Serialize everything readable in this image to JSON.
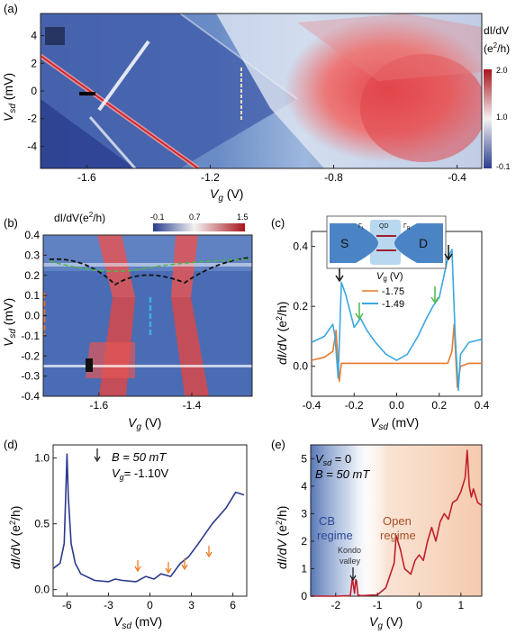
{
  "panels": {
    "a": {
      "label": "(a)",
      "ylabel": "V",
      "ylabel_sub": "sd",
      "ylabel_unit": " (mV)",
      "xlabel": "V",
      "xlabel_sub": "g",
      "xlabel_unit": " (V)",
      "xticks": [
        "-1.6",
        "-1.2",
        "-0.8",
        "-0.4"
      ],
      "yticks": [
        "4",
        "2",
        "0",
        "-2",
        "-4"
      ],
      "cbar_title": "dI/dV",
      "cbar_unit": "(e",
      "cbar_unit_sup": "2",
      "cbar_unit_end": "/h)",
      "cbar_ticks": [
        "2.0",
        "1.0",
        "-0.1"
      ]
    },
    "b": {
      "label": "(b)",
      "cbar_title": "dI/dV(e",
      "cbar_title_sup": "2",
      "cbar_title_end": "/h)",
      "cbar_ticks": [
        "-0.1",
        "0.7",
        "1.5"
      ],
      "ylabel": "V",
      "ylabel_sub": "sd",
      "ylabel_unit": " (mV)",
      "xlabel": "V",
      "xlabel_sub": "g",
      "xlabel_unit": " (V)",
      "xticks": [
        "-1.6",
        "-1.4"
      ],
      "yticks": [
        "0.4",
        "0.3",
        "0.2",
        "0.1",
        "0.0",
        "-0.1",
        "-0.2",
        "-0.3",
        "-0.4"
      ]
    },
    "c": {
      "label": "(c)",
      "ylabel": "dI/dV",
      "ylabel_unit": " (e",
      "ylabel_sup": "2",
      "ylabel_end": "/h)",
      "xlabel": "V",
      "xlabel_sub": "sd",
      "xlabel_unit": " (mV)",
      "xticks": [
        "-0.4",
        "-0.2",
        "0.0",
        "0.2",
        "0.4"
      ],
      "yticks": [
        "0.4",
        "0.2",
        "0.0"
      ],
      "legend_title": "V",
      "legend_title_sub": "g",
      "legend_title_unit": " (V)",
      "inset": {
        "S": "S",
        "D": "D",
        "QD": "QD",
        "gl": "Γ",
        "gl_sub": "l",
        "gr": "Γ",
        "gr_sub": "R"
      }
    },
    "d": {
      "label": "(d)",
      "ylabel": "dI/dV",
      "ylabel_unit": " (e",
      "ylabel_sup": "2",
      "ylabel_end": "/h)",
      "xlabel": "V",
      "xlabel_sub": "sd",
      "xlabel_unit": " (mV)",
      "xticks": [
        "-6",
        "-3",
        "0",
        "3",
        "6"
      ],
      "yticks": [
        "1.0",
        "0.5",
        "0.0"
      ],
      "anno_b": "B = 50 mT",
      "anno_vg_sym": "V",
      "anno_vg_sub": "g",
      "anno_vg_val": "= -1.10V"
    },
    "e": {
      "label": "(e)",
      "ylabel": "dI/dV",
      "ylabel_unit": " (e",
      "ylabel_sup": "2",
      "ylabel_end": "/h)",
      "xlabel": "V",
      "xlabel_sub": "g",
      "xlabel_unit": " (V)",
      "xticks": [
        "-2",
        "-1",
        "0",
        "1"
      ],
      "yticks": [
        "5",
        "4",
        "3",
        "2",
        "1",
        "0"
      ],
      "anno_vsd_sym": "V",
      "anno_vsd_sub": "sd",
      "anno_vsd_val": " = 0",
      "anno_b": "B = 50 mT",
      "cb_line1": "CB",
      "cb_line2": "regime",
      "open_line1": "Open",
      "open_line2": "regime",
      "kondo_line1": "Kondo",
      "kondo_line2": "valley"
    }
  },
  "colors": {
    "map_low": "#2a3d8f",
    "map_mid": "#f2f2f4",
    "map_high": "#c8202a",
    "trace_orange": "#e87a2c",
    "trace_blue": "#3aa8e0",
    "trace_navy": "#2a3a8c",
    "trace_red": "#c0202a",
    "arrow_orange": "#f07a20",
    "arrow_green": "#4cb848",
    "region_blue": "#3a5fa8",
    "region_orange": "#f4c4a4"
  },
  "chart_data": [
    {
      "panel": "c",
      "type": "line",
      "xlabel": "Vsd (mV)",
      "ylabel": "dI/dV (e2/h)",
      "xlim": [
        -0.4,
        0.4
      ],
      "ylim": [
        -0.1,
        0.45
      ],
      "series": [
        {
          "name": "-1.75",
          "color": "#e87a2c",
          "x": [
            -0.4,
            -0.34,
            -0.3,
            -0.285,
            -0.27,
            -0.26,
            -0.24,
            -0.2,
            -0.1,
            0.0,
            0.1,
            0.2,
            0.24,
            0.26,
            0.27,
            0.285,
            0.3,
            0.34,
            0.4
          ],
          "y": [
            0.02,
            0.03,
            0.05,
            0.12,
            -0.05,
            0.01,
            0.01,
            0.01,
            0.01,
            0.01,
            0.01,
            0.01,
            0.01,
            0.05,
            0.14,
            -0.07,
            0.0,
            0.01,
            0.01
          ]
        },
        {
          "name": "-1.49",
          "color": "#3aa8e0",
          "x": [
            -0.4,
            -0.34,
            -0.3,
            -0.29,
            -0.275,
            -0.26,
            -0.24,
            -0.2,
            -0.17,
            -0.14,
            -0.1,
            -0.05,
            0.0,
            0.05,
            0.1,
            0.14,
            0.17,
            0.2,
            0.24,
            0.26,
            0.275,
            0.29,
            0.3,
            0.34,
            0.4
          ],
          "y": [
            0.08,
            0.1,
            0.14,
            0.1,
            -0.04,
            0.28,
            0.24,
            0.13,
            0.16,
            0.12,
            0.08,
            0.04,
            0.02,
            0.04,
            0.1,
            0.16,
            0.2,
            0.23,
            0.36,
            0.39,
            0.1,
            -0.08,
            0.04,
            0.08,
            0.09
          ]
        }
      ]
    },
    {
      "panel": "d",
      "type": "line",
      "xlabel": "Vsd (mV)",
      "ylabel": "dI/dV (e2/h)",
      "xlim": [
        -7,
        7
      ],
      "ylim": [
        -0.05,
        1.1
      ],
      "series": [
        {
          "color": "#2a3a8c",
          "x": [
            -7,
            -6.5,
            -6.2,
            -6.0,
            -5.9,
            -5.7,
            -5.4,
            -5.0,
            -4.0,
            -3.0,
            -2.5,
            -2.0,
            -1.0,
            -0.3,
            0.3,
            0.8,
            1.5,
            2.2,
            2.8,
            3.5,
            4.5,
            5.5,
            6.2,
            6.8
          ],
          "y": [
            0.16,
            0.2,
            0.35,
            1.03,
            0.7,
            0.35,
            0.2,
            0.12,
            0.07,
            0.06,
            0.08,
            0.07,
            0.06,
            0.1,
            0.08,
            0.12,
            0.1,
            0.2,
            0.25,
            0.35,
            0.5,
            0.62,
            0.74,
            0.72
          ]
        }
      ]
    },
    {
      "panel": "e",
      "type": "line",
      "xlabel": "Vg (V)",
      "ylabel": "dI/dV (e2/h)",
      "xlim": [
        -2.6,
        1.5
      ],
      "ylim": [
        0,
        5.5
      ],
      "series": [
        {
          "color": "#c0202a",
          "x": [
            -2.6,
            -2.0,
            -1.65,
            -1.6,
            -1.55,
            -1.52,
            -1.5,
            -1.47,
            -1.4,
            -1.0,
            -0.8,
            -0.6,
            -0.55,
            -0.45,
            -0.35,
            -0.2,
            -0.1,
            0.0,
            0.1,
            0.2,
            0.3,
            0.4,
            0.5,
            0.6,
            0.7,
            0.8,
            0.9,
            1.0,
            1.1,
            1.15,
            1.2,
            1.25,
            1.3,
            1.4,
            1.5
          ],
          "y": [
            0.0,
            0.0,
            0.02,
            0.65,
            0.1,
            0.6,
            0.55,
            0.05,
            0.02,
            0.05,
            0.3,
            1.2,
            2.2,
            1.7,
            1.0,
            0.8,
            1.3,
            1.5,
            1.3,
            2.0,
            2.5,
            2.0,
            2.7,
            3.0,
            2.8,
            3.4,
            3.5,
            3.8,
            4.3,
            5.3,
            4.0,
            3.6,
            3.9,
            3.4,
            3.3
          ]
        }
      ]
    }
  ]
}
